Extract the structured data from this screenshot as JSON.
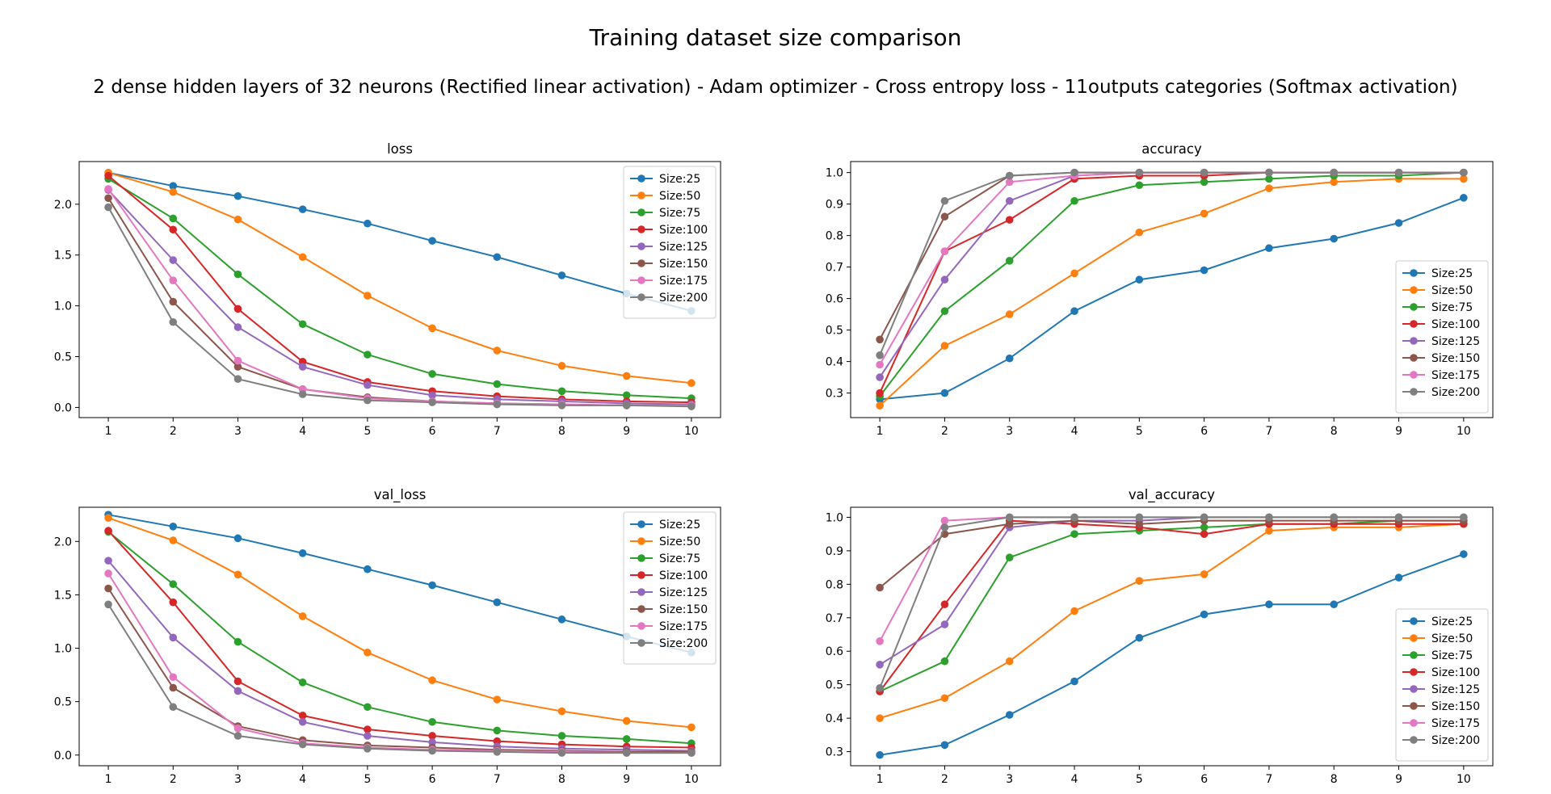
{
  "figure": {
    "title": "Training dataset size comparison",
    "subtitle": "2 dense hidden layers of 32 neurons (Rectified linear activation) - Adam optimizer - Cross entropy loss - 11outputs categories (Softmax activation)"
  },
  "colors": {
    "Size:25": "#1f77b4",
    "Size:50": "#ff7f0e",
    "Size:75": "#2ca02c",
    "Size:100": "#d62728",
    "Size:125": "#9467bd",
    "Size:150": "#8c564b",
    "Size:175": "#e377c2",
    "Size:200": "#7f7f7f"
  },
  "chart_data": [
    {
      "type": "line",
      "title": "loss",
      "x": [
        1,
        2,
        3,
        4,
        5,
        6,
        7,
        8,
        9,
        10
      ],
      "ylim": [
        -0.1,
        2.42
      ],
      "yticks": [
        0.0,
        0.5,
        1.0,
        1.5,
        2.0
      ],
      "ytick_labels": [
        "0.0",
        "0.5",
        "1.0",
        "1.5",
        "2.0"
      ],
      "legend": "top-right",
      "series": [
        {
          "name": "Size:25",
          "values": [
            2.31,
            2.18,
            2.08,
            1.95,
            1.81,
            1.64,
            1.48,
            1.3,
            1.12,
            0.95
          ]
        },
        {
          "name": "Size:50",
          "values": [
            2.31,
            2.12,
            1.85,
            1.48,
            1.1,
            0.78,
            0.56,
            0.41,
            0.31,
            0.24
          ]
        },
        {
          "name": "Size:75",
          "values": [
            2.25,
            1.86,
            1.31,
            0.82,
            0.52,
            0.33,
            0.23,
            0.16,
            0.12,
            0.09
          ]
        },
        {
          "name": "Size:100",
          "values": [
            2.28,
            1.75,
            0.97,
            0.45,
            0.25,
            0.16,
            0.11,
            0.08,
            0.06,
            0.05
          ]
        },
        {
          "name": "Size:125",
          "values": [
            2.14,
            1.45,
            0.79,
            0.4,
            0.22,
            0.12,
            0.08,
            0.06,
            0.04,
            0.03
          ]
        },
        {
          "name": "Size:150",
          "values": [
            2.06,
            1.04,
            0.4,
            0.18,
            0.1,
            0.06,
            0.04,
            0.03,
            0.02,
            0.02
          ]
        },
        {
          "name": "Size:175",
          "values": [
            2.15,
            1.25,
            0.46,
            0.18,
            0.09,
            0.06,
            0.04,
            0.03,
            0.02,
            0.02
          ]
        },
        {
          "name": "Size:200",
          "values": [
            1.97,
            0.84,
            0.28,
            0.13,
            0.07,
            0.05,
            0.03,
            0.02,
            0.02,
            0.01
          ]
        }
      ]
    },
    {
      "type": "line",
      "title": "accuracy",
      "x": [
        1,
        2,
        3,
        4,
        5,
        6,
        7,
        8,
        9,
        10
      ],
      "ylim": [
        0.222,
        1.035
      ],
      "yticks": [
        0.3,
        0.4,
        0.5,
        0.6,
        0.7,
        0.8,
        0.9,
        1.0
      ],
      "ytick_labels": [
        "0.3",
        "0.4",
        "0.5",
        "0.6",
        "0.7",
        "0.8",
        "0.9",
        "1.0"
      ],
      "legend": "bottom-right",
      "series": [
        {
          "name": "Size:25",
          "values": [
            0.28,
            0.3,
            0.41,
            0.56,
            0.66,
            0.69,
            0.76,
            0.79,
            0.84,
            0.92
          ]
        },
        {
          "name": "Size:50",
          "values": [
            0.26,
            0.45,
            0.55,
            0.68,
            0.81,
            0.87,
            0.95,
            0.97,
            0.98,
            0.98
          ]
        },
        {
          "name": "Size:75",
          "values": [
            0.29,
            0.56,
            0.72,
            0.91,
            0.96,
            0.97,
            0.98,
            0.99,
            0.99,
            1.0
          ]
        },
        {
          "name": "Size:100",
          "values": [
            0.3,
            0.75,
            0.85,
            0.98,
            0.99,
            0.99,
            1.0,
            1.0,
            1.0,
            1.0
          ]
        },
        {
          "name": "Size:125",
          "values": [
            0.35,
            0.66,
            0.91,
            0.99,
            1.0,
            1.0,
            1.0,
            1.0,
            1.0,
            1.0
          ]
        },
        {
          "name": "Size:150",
          "values": [
            0.47,
            0.86,
            0.99,
            1.0,
            1.0,
            1.0,
            1.0,
            1.0,
            1.0,
            1.0
          ]
        },
        {
          "name": "Size:175",
          "values": [
            0.39,
            0.75,
            0.97,
            0.99,
            1.0,
            1.0,
            1.0,
            1.0,
            1.0,
            1.0
          ]
        },
        {
          "name": "Size:200",
          "values": [
            0.42,
            0.91,
            0.99,
            1.0,
            1.0,
            1.0,
            1.0,
            1.0,
            1.0,
            1.0
          ]
        }
      ]
    },
    {
      "type": "line",
      "title": "val_loss",
      "x": [
        1,
        2,
        3,
        4,
        5,
        6,
        7,
        8,
        9,
        10
      ],
      "ylim": [
        -0.1,
        2.32
      ],
      "yticks": [
        0.0,
        0.5,
        1.0,
        1.5,
        2.0
      ],
      "ytick_labels": [
        "0.0",
        "0.5",
        "1.0",
        "1.5",
        "2.0"
      ],
      "legend": "top-right",
      "series": [
        {
          "name": "Size:25",
          "values": [
            2.25,
            2.14,
            2.03,
            1.89,
            1.74,
            1.59,
            1.43,
            1.27,
            1.11,
            0.96
          ]
        },
        {
          "name": "Size:50",
          "values": [
            2.22,
            2.01,
            1.69,
            1.3,
            0.96,
            0.7,
            0.52,
            0.41,
            0.32,
            0.26
          ]
        },
        {
          "name": "Size:75",
          "values": [
            2.09,
            1.6,
            1.06,
            0.68,
            0.45,
            0.31,
            0.23,
            0.18,
            0.15,
            0.11
          ]
        },
        {
          "name": "Size:100",
          "values": [
            2.1,
            1.43,
            0.69,
            0.37,
            0.24,
            0.18,
            0.13,
            0.1,
            0.08,
            0.07
          ]
        },
        {
          "name": "Size:125",
          "values": [
            1.82,
            1.1,
            0.6,
            0.31,
            0.18,
            0.12,
            0.08,
            0.06,
            0.05,
            0.04
          ]
        },
        {
          "name": "Size:150",
          "values": [
            1.56,
            0.63,
            0.27,
            0.14,
            0.09,
            0.07,
            0.05,
            0.04,
            0.03,
            0.03
          ]
        },
        {
          "name": "Size:175",
          "values": [
            1.7,
            0.73,
            0.25,
            0.11,
            0.07,
            0.05,
            0.04,
            0.03,
            0.02,
            0.02
          ]
        },
        {
          "name": "Size:200",
          "values": [
            1.41,
            0.45,
            0.18,
            0.1,
            0.06,
            0.04,
            0.03,
            0.02,
            0.02,
            0.02
          ]
        }
      ]
    },
    {
      "type": "line",
      "title": "val_accuracy",
      "x": [
        1,
        2,
        3,
        4,
        5,
        6,
        7,
        8,
        9,
        10
      ],
      "ylim": [
        0.258,
        1.03
      ],
      "yticks": [
        0.3,
        0.4,
        0.5,
        0.6,
        0.7,
        0.8,
        0.9,
        1.0
      ],
      "ytick_labels": [
        "0.3",
        "0.4",
        "0.5",
        "0.6",
        "0.7",
        "0.8",
        "0.9",
        "1.0"
      ],
      "legend": "bottom-right",
      "series": [
        {
          "name": "Size:25",
          "values": [
            0.29,
            0.32,
            0.41,
            0.51,
            0.64,
            0.71,
            0.74,
            0.74,
            0.82,
            0.89
          ]
        },
        {
          "name": "Size:50",
          "values": [
            0.4,
            0.46,
            0.57,
            0.72,
            0.81,
            0.83,
            0.96,
            0.97,
            0.97,
            0.98
          ]
        },
        {
          "name": "Size:75",
          "values": [
            0.48,
            0.57,
            0.88,
            0.95,
            0.96,
            0.97,
            0.98,
            0.98,
            0.99,
            0.99
          ]
        },
        {
          "name": "Size:100",
          "values": [
            0.48,
            0.74,
            0.99,
            0.98,
            0.97,
            0.95,
            0.98,
            0.98,
            0.98,
            0.98
          ]
        },
        {
          "name": "Size:125",
          "values": [
            0.56,
            0.68,
            0.97,
            0.99,
            0.99,
            1.0,
            1.0,
            1.0,
            1.0,
            1.0
          ]
        },
        {
          "name": "Size:150",
          "values": [
            0.79,
            0.95,
            0.98,
            0.99,
            0.98,
            0.99,
            0.99,
            0.99,
            0.99,
            0.99
          ]
        },
        {
          "name": "Size:175",
          "values": [
            0.63,
            0.99,
            1.0,
            1.0,
            1.0,
            1.0,
            1.0,
            1.0,
            1.0,
            1.0
          ]
        },
        {
          "name": "Size:200",
          "values": [
            0.49,
            0.97,
            1.0,
            1.0,
            1.0,
            1.0,
            1.0,
            1.0,
            1.0,
            1.0
          ]
        }
      ]
    }
  ]
}
